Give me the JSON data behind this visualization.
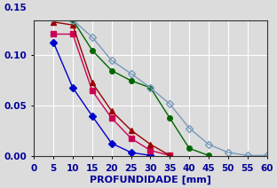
{
  "series": [
    {
      "label": "blue_diamond",
      "color": "#0000CC",
      "marker": "D",
      "markersize": 4,
      "markerfacecolor": "#0000CC",
      "markeredgecolor": "#0000CC",
      "x": [
        5,
        10,
        15,
        20,
        25,
        30
      ],
      "y": [
        0.113,
        0.068,
        0.04,
        0.013,
        0.004,
        0.001
      ]
    },
    {
      "label": "pink_square",
      "color": "#CC0055",
      "marker": "s",
      "markersize": 4,
      "markerfacecolor": "#CC0055",
      "markeredgecolor": "#CC0055",
      "x": [
        5,
        10,
        15,
        20,
        25,
        30,
        35
      ],
      "y": [
        0.121,
        0.121,
        0.065,
        0.038,
        0.018,
        0.006,
        0.001
      ]
    },
    {
      "label": "darkred_triangle",
      "color": "#990000",
      "marker": "^",
      "markersize": 4,
      "markerfacecolor": "#990000",
      "markeredgecolor": "#990000",
      "x": [
        5,
        10,
        15,
        20,
        25,
        30,
        35
      ],
      "y": [
        0.133,
        0.13,
        0.073,
        0.045,
        0.026,
        0.012,
        0.001
      ]
    },
    {
      "label": "darkgreen_circle",
      "color": "#006600",
      "marker": "o",
      "markersize": 4,
      "markerfacecolor": "#006600",
      "markeredgecolor": "#006600",
      "x": [
        5,
        10,
        15,
        20,
        25,
        30,
        35,
        40,
        45
      ],
      "y": [
        0.137,
        0.135,
        0.105,
        0.085,
        0.075,
        0.068,
        0.038,
        0.008,
        0.001
      ]
    },
    {
      "label": "lightblue_diamond",
      "color": "#7799BB",
      "marker": "D",
      "markersize": 4,
      "markerfacecolor": "none",
      "markeredgecolor": "#7799BB",
      "x": [
        5,
        10,
        15,
        20,
        25,
        30,
        35,
        40,
        45,
        50,
        55,
        60
      ],
      "y": [
        0.137,
        0.135,
        0.118,
        0.095,
        0.082,
        0.068,
        0.052,
        0.028,
        0.012,
        0.004,
        0.001,
        0.001
      ]
    }
  ],
  "xlabel": "PROFUNDIDADE [mm]",
  "xlim": [
    0,
    60
  ],
  "ylim": [
    0.0,
    0.135
  ],
  "ytop_label": "0.15",
  "yticks": [
    0.0,
    0.05,
    0.1
  ],
  "xticks": [
    0,
    5,
    10,
    15,
    20,
    25,
    30,
    35,
    40,
    45,
    50,
    55,
    60
  ],
  "background_color": "#DCDCDC",
  "grid_color": "#FFFFFF",
  "text_color": "#000099",
  "label_fontsize": 8,
  "tick_fontsize": 7.5
}
